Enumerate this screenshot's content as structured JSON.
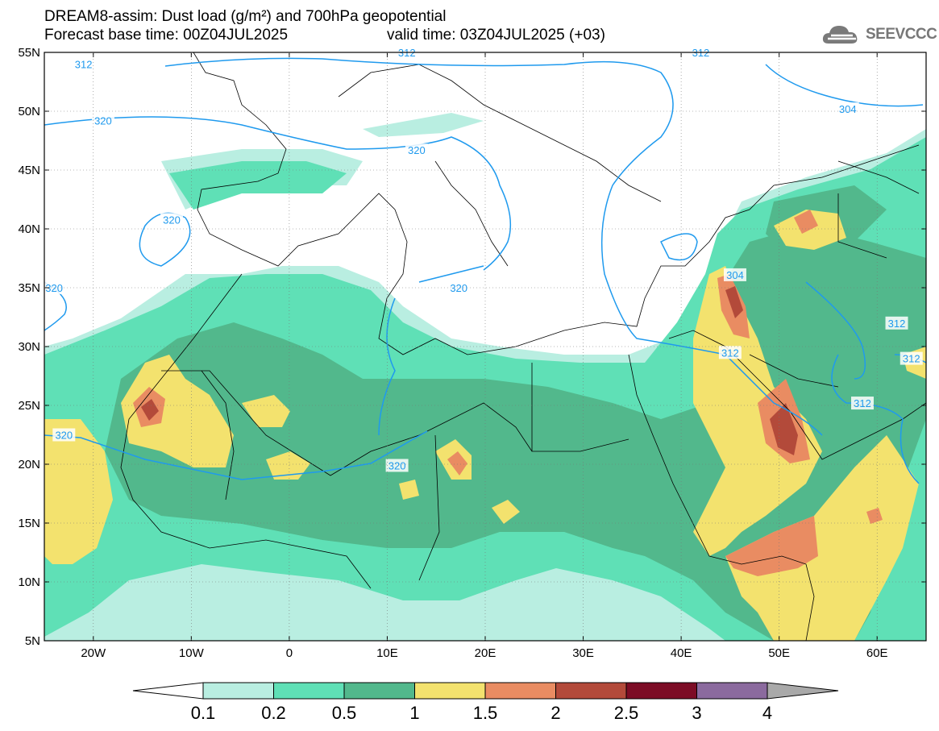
{
  "title": {
    "line1": "DREAM8-assim: Dust load (g/m²) and 700hPa geopotential",
    "line2": "Forecast base time: 00Z04JUL2025",
    "valid": "valid time: 03Z04JUL2025 (+03)"
  },
  "logo": {
    "text": "SEEVCCC",
    "icon": "cloud-icon"
  },
  "axes": {
    "lat_labels": [
      "55N",
      "50N",
      "45N",
      "40N",
      "35N",
      "30N",
      "25N",
      "20N",
      "15N",
      "10N",
      "5N"
    ],
    "lat_values": [
      55,
      50,
      45,
      40,
      35,
      30,
      25,
      20,
      15,
      10,
      5
    ],
    "lon_labels": [
      "20W",
      "10W",
      "0",
      "10E",
      "20E",
      "30E",
      "40E",
      "50E",
      "60E"
    ],
    "lon_values": [
      -20,
      -10,
      0,
      10,
      20,
      30,
      40,
      50,
      60
    ],
    "lon_range": [
      -25,
      65
    ],
    "lat_range": [
      5,
      55
    ]
  },
  "contours": {
    "labels": [
      {
        "text": "312",
        "lon": -21,
        "lat": 54
      },
      {
        "text": "312",
        "lon": 12,
        "lat": 55
      },
      {
        "text": "312",
        "lon": 42,
        "lat": 55
      },
      {
        "text": "304",
        "lon": 57,
        "lat": 50.2
      },
      {
        "text": "320",
        "lon": -19,
        "lat": 49.2
      },
      {
        "text": "320",
        "lon": 13,
        "lat": 46.7
      },
      {
        "text": "320",
        "lon": -12,
        "lat": 40.8
      },
      {
        "text": "304",
        "lon": 45.5,
        "lat": 36.1
      },
      {
        "text": "320",
        "lon": -24,
        "lat": 35
      },
      {
        "text": "320",
        "lon": 17.3,
        "lat": 35
      },
      {
        "text": "312",
        "lon": 45,
        "lat": 29.5
      },
      {
        "text": "312",
        "lon": 62,
        "lat": 32
      },
      {
        "text": "312",
        "lon": 63.5,
        "lat": 29
      },
      {
        "text": "312",
        "lon": 58.5,
        "lat": 25.2
      },
      {
        "text": "320",
        "lon": -23,
        "lat": 22.5
      },
      {
        "text": "320",
        "lon": 11,
        "lat": 19.9
      }
    ]
  },
  "colorbar": {
    "levels": [
      "0.1",
      "0.2",
      "0.5",
      "1",
      "1.5",
      "2",
      "2.5",
      "3",
      "4"
    ],
    "colors": [
      "#ffffff",
      "#b9eee1",
      "#5fe0b6",
      "#52b88c",
      "#f3e26e",
      "#e98c62",
      "#b34a3a",
      "#7c0c25",
      "#8b6a9e",
      "#a9a9a9"
    ]
  }
}
